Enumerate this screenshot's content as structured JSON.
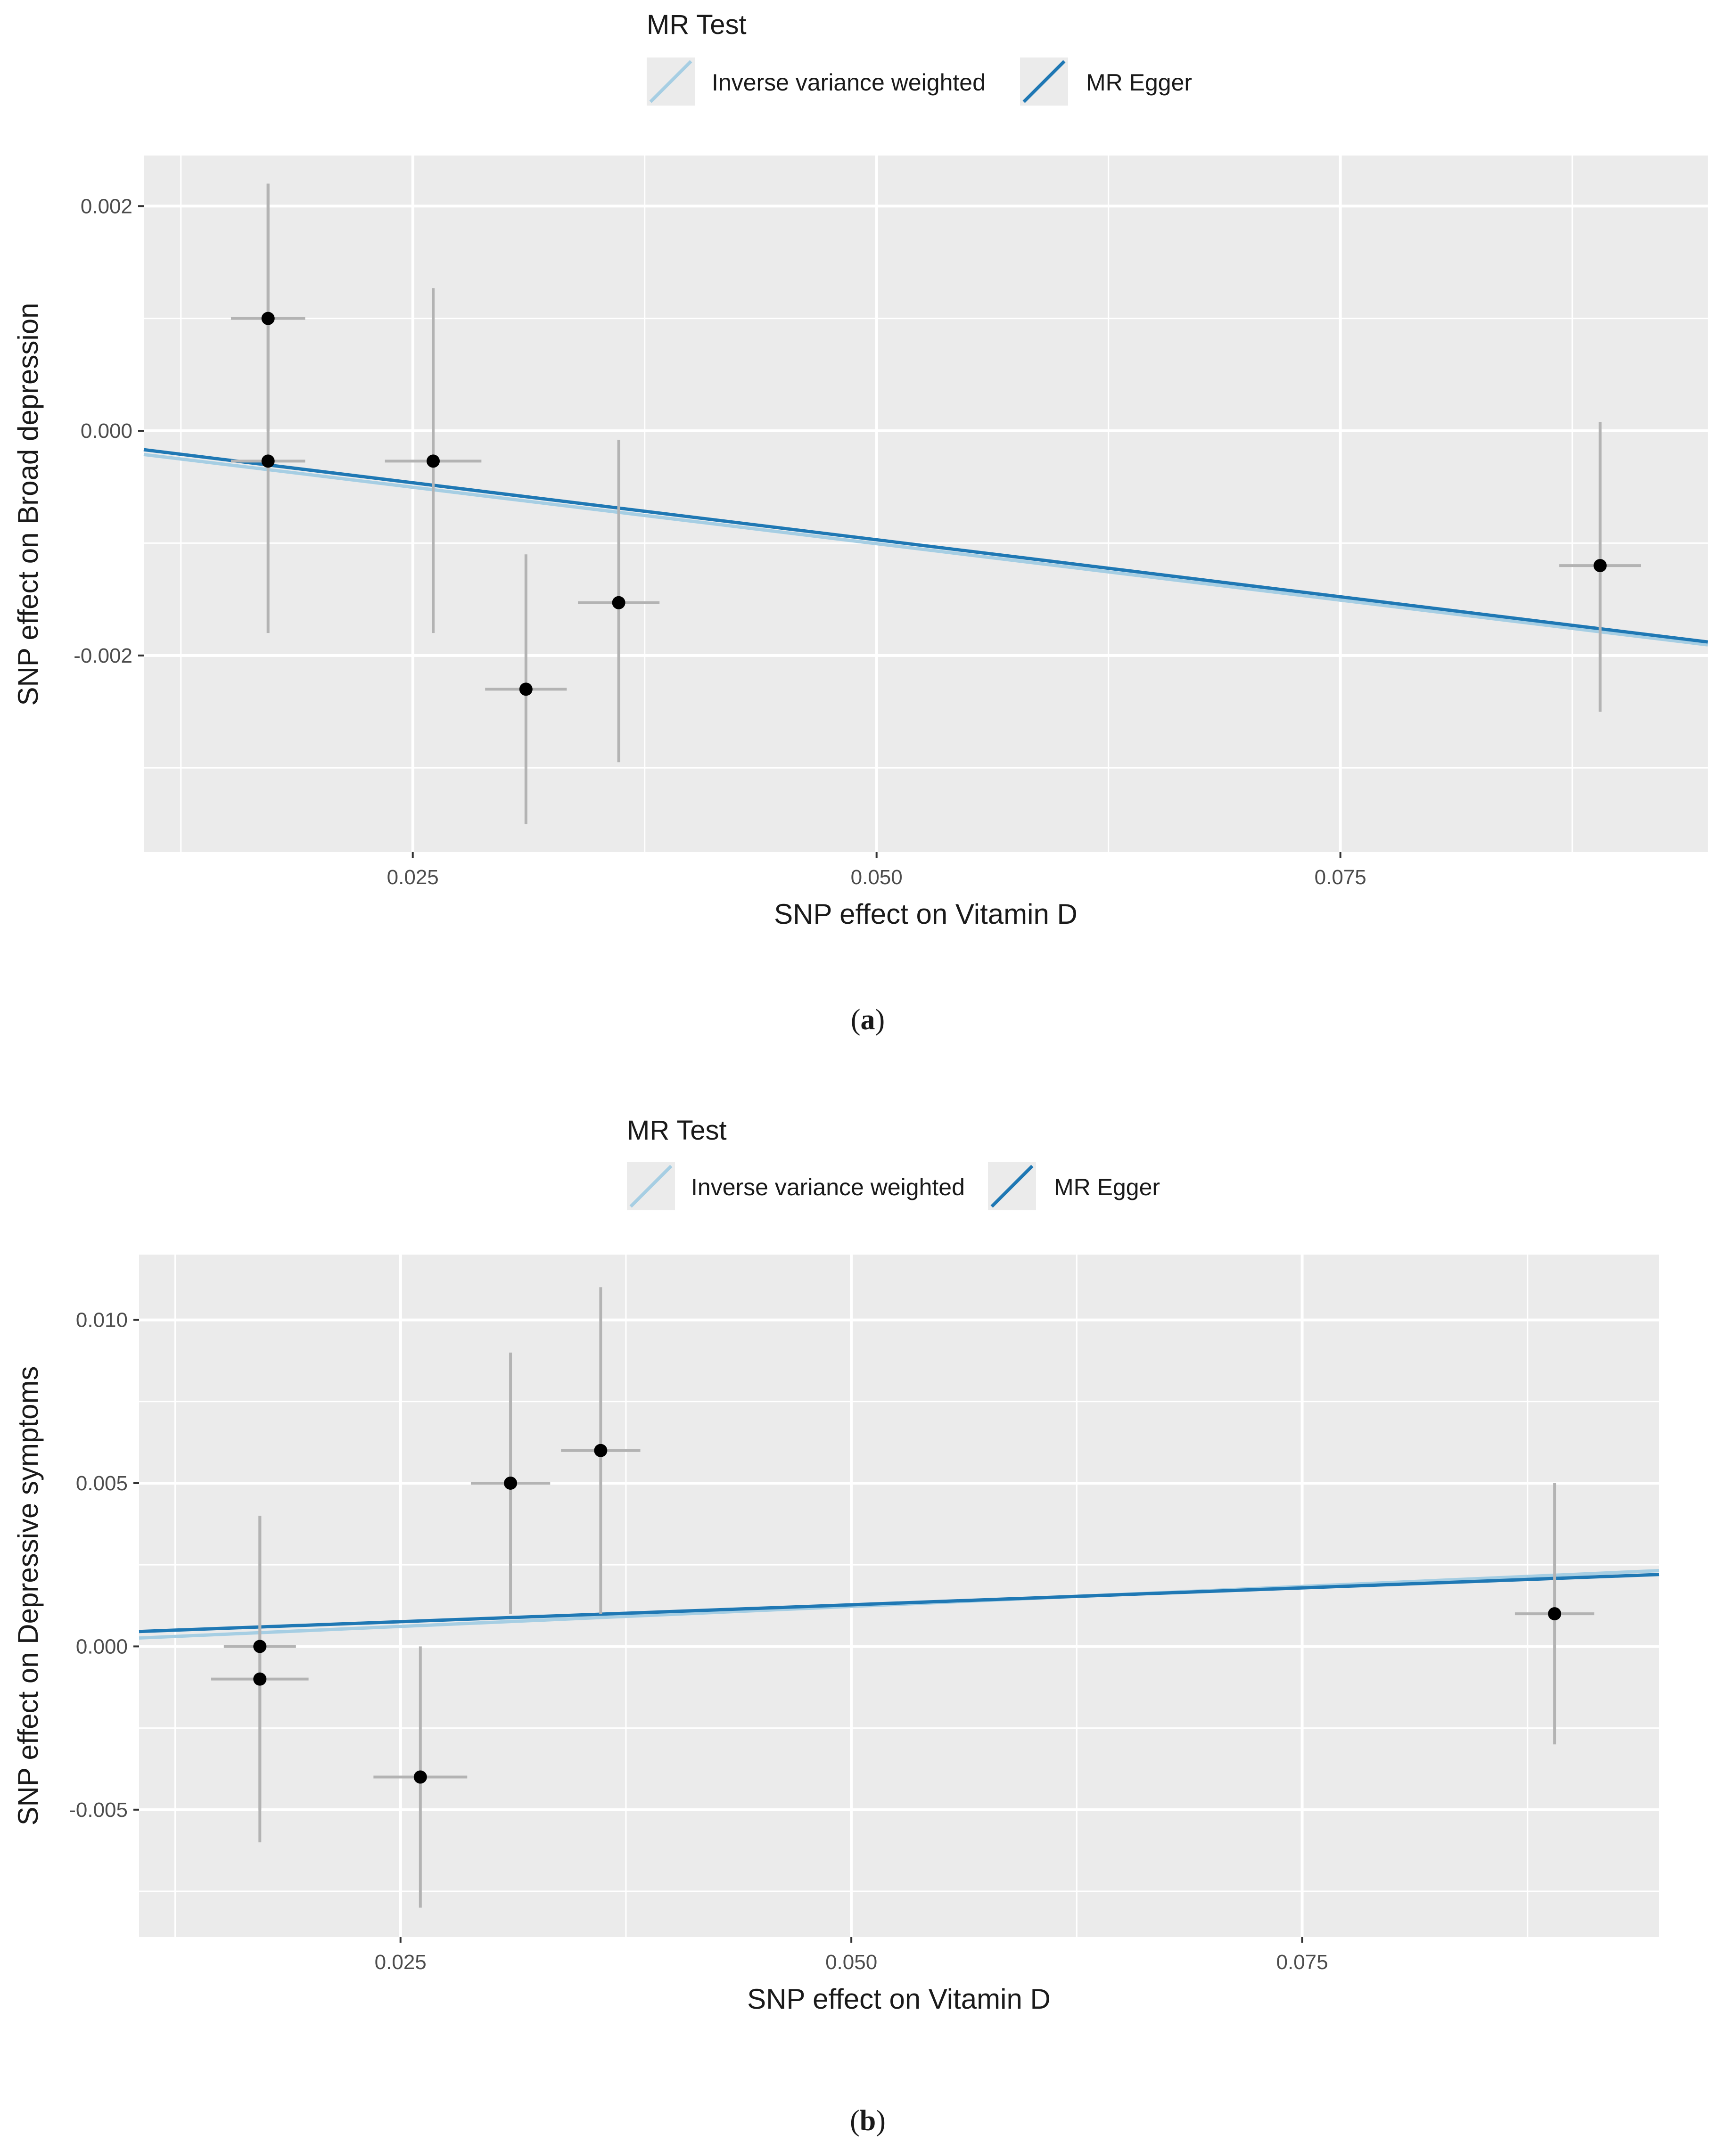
{
  "legend": {
    "title": "MR Test",
    "items": [
      {
        "label": "Inverse variance weighted",
        "color": "#a6cee3"
      },
      {
        "label": "MR Egger",
        "color": "#1f78b4"
      }
    ]
  },
  "colors": {
    "panel_bg": "#ebebeb",
    "grid": "#ffffff",
    "errorbar": "#b3b3b3",
    "point": "#000000"
  },
  "chart_data": [
    {
      "type": "scatter",
      "panel_label": "a",
      "xlabel": "SNP effect on Vitamin D",
      "ylabel": "SNP effect on Broad depression",
      "xlim": [
        0.0105,
        0.0948
      ],
      "ylim": [
        -0.00375,
        0.00245
      ],
      "x_ticks": [
        0.025,
        0.05,
        0.075
      ],
      "x_tick_labels": [
        "0.025",
        "0.050",
        "0.075"
      ],
      "y_ticks": [
        -0.002,
        0.0,
        0.002
      ],
      "y_tick_labels": [
        "-0.002",
        "0.000",
        "0.002"
      ],
      "points": [
        {
          "x": 0.0172,
          "y": 0.001,
          "x_lo": 0.0152,
          "x_hi": 0.0192,
          "y_lo": -0.0,
          "y_hi": 0.0022
        },
        {
          "x": 0.0172,
          "y": -0.00027,
          "x_lo": 0.0152,
          "x_hi": 0.0192,
          "y_lo": -0.0018,
          "y_hi": 0.0022
        },
        {
          "x": 0.0261,
          "y": -0.00027,
          "x_lo": 0.0235,
          "x_hi": 0.0287,
          "y_lo": -0.0018,
          "y_hi": 0.00127
        },
        {
          "x": 0.0311,
          "y": -0.0023,
          "x_lo": 0.0289,
          "x_hi": 0.0333,
          "y_lo": -0.0035,
          "y_hi": -0.0011
        },
        {
          "x": 0.0361,
          "y": -0.00153,
          "x_lo": 0.0339,
          "x_hi": 0.0383,
          "y_lo": -0.00295,
          "y_hi": -8e-05
        },
        {
          "x": 0.089,
          "y": -0.0012,
          "x_lo": 0.0868,
          "x_hi": 0.0912,
          "y_lo": -0.0025,
          "y_hi": 8e-05
        }
      ],
      "lines": [
        {
          "name": "Inverse variance weighted",
          "intercept": 0.0,
          "slope": -0.0201
        },
        {
          "name": "MR Egger",
          "intercept": 4.5e-05,
          "slope": -0.0203
        }
      ],
      "error_bar_note": ""
    },
    {
      "type": "scatter",
      "panel_label": "b",
      "xlabel": "SNP effect on Vitamin D",
      "ylabel": "SNP effect on Depressive symptoms",
      "xlim": [
        0.0105,
        0.0948
      ],
      "ylim": [
        -0.0089,
        0.012
      ],
      "x_ticks": [
        0.025,
        0.05,
        0.075
      ],
      "x_tick_labels": [
        "0.025",
        "0.050",
        "0.075"
      ],
      "y_ticks": [
        -0.005,
        0.0,
        0.005,
        0.01
      ],
      "y_tick_labels": [
        "-0.005",
        "0.000",
        "0.005",
        "0.010"
      ],
      "points": [
        {
          "x": 0.0172,
          "y": 0.0,
          "x_lo": 0.0152,
          "x_hi": 0.0192,
          "y_lo": -0.005,
          "y_hi": 0.004
        },
        {
          "x": 0.0172,
          "y": -0.001,
          "x_lo": 0.0145,
          "x_hi": 0.0199,
          "y_lo": -0.006,
          "y_hi": 0.004
        },
        {
          "x": 0.0261,
          "y": -0.004,
          "x_lo": 0.0235,
          "x_hi": 0.0287,
          "y_lo": -0.008,
          "y_hi": 0.0
        },
        {
          "x": 0.0311,
          "y": 0.005,
          "x_lo": 0.0289,
          "x_hi": 0.0333,
          "y_lo": 0.001,
          "y_hi": 0.009
        },
        {
          "x": 0.0361,
          "y": 0.006,
          "x_lo": 0.0339,
          "x_hi": 0.0383,
          "y_lo": 0.001,
          "y_hi": 0.011
        },
        {
          "x": 0.089,
          "y": 0.001,
          "x_lo": 0.0868,
          "x_hi": 0.0912,
          "y_lo": -0.003,
          "y_hi": 0.005
        }
      ],
      "lines": [
        {
          "name": "Inverse variance weighted",
          "intercept": 0.0,
          "slope": 0.0245
        },
        {
          "name": "MR Egger",
          "intercept": 0.00024,
          "slope": 0.0207
        }
      ]
    }
  ]
}
